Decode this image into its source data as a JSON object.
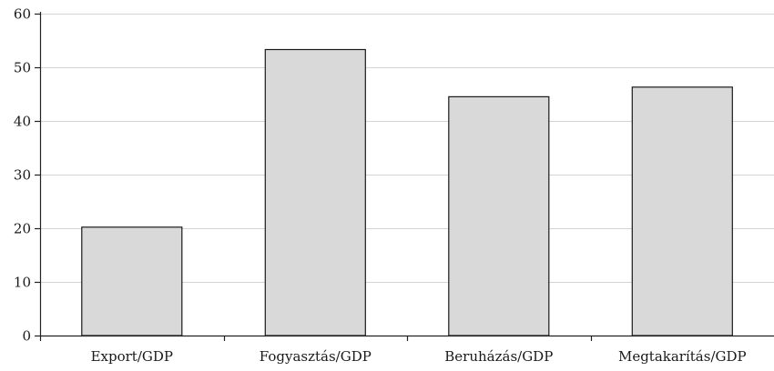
{
  "chart_data": {
    "type": "bar",
    "categories": [
      "Export/GDP",
      "Fogyasztás/GDP",
      "Beruházás/GDP",
      "Megtakarítás/GDP"
    ],
    "values": [
      20.2,
      53.3,
      44.5,
      46.3
    ],
    "title": "",
    "xlabel": "",
    "ylabel": "",
    "ylim": [
      0,
      60
    ],
    "yticks": [
      0,
      10,
      20,
      30,
      40,
      50,
      60
    ],
    "grid": true,
    "bar_color": "#d9d9d9",
    "bar_edge_color": "#1a1a1a"
  }
}
